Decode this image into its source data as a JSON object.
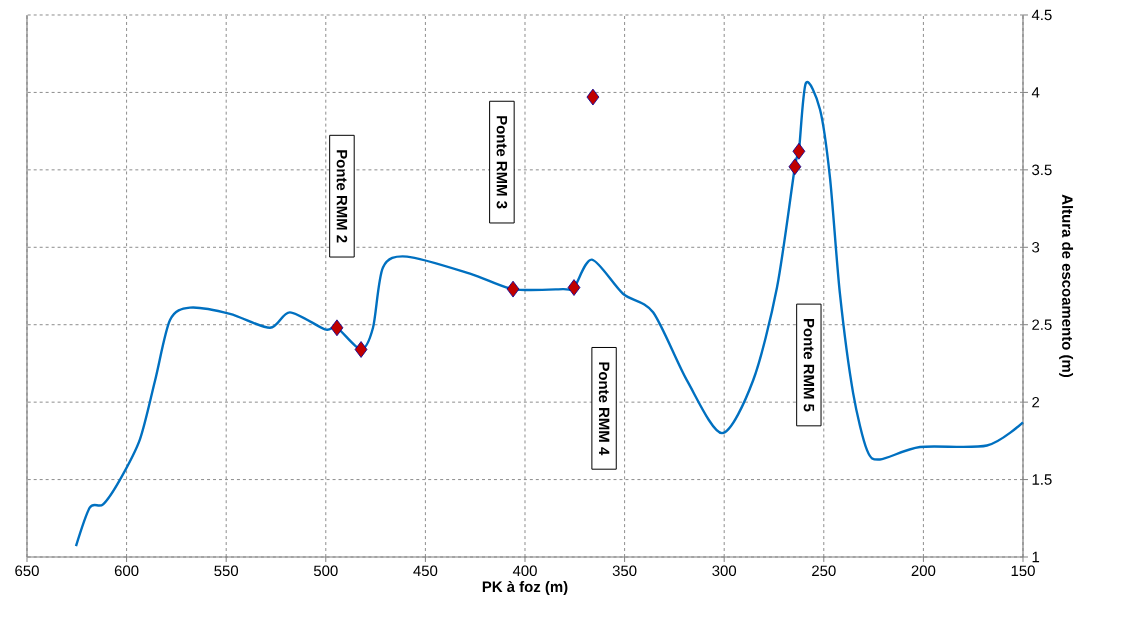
{
  "chart_data": {
    "type": "line",
    "xlabel": "PK à foz (m)",
    "ylabel": "Altura de escoamento (m)",
    "xlim": [
      650,
      150
    ],
    "xticks": [
      650,
      600,
      550,
      500,
      450,
      400,
      350,
      300,
      250,
      200,
      150
    ],
    "ylim": [
      1,
      4.5
    ],
    "yticks": [
      1,
      1.5,
      2,
      2.5,
      3,
      3.5,
      4,
      4.5
    ],
    "grid": true,
    "series": [
      {
        "color": "#0070c0",
        "x": [
          625.4,
          618.4,
          611.8,
          603.3,
          593.3,
          585.7,
          578.2,
          568.2,
          548.1,
          528.0,
          518.0,
          500.4,
          494.4,
          482.3,
          476.3,
          471.3,
          459.2,
          427.6,
          406.0,
          381.0,
          375.4,
          366.4,
          350.8,
          335.7,
          318.7,
          301.1,
          285.5,
          273.5,
          264.5,
          262.5,
          259.0,
          251.9,
          246.9,
          241.9,
          235.3,
          228.3,
          221.8,
          201.7,
          168.1,
          150.0
        ],
        "values": [
          1.07,
          1.32,
          1.34,
          1.5,
          1.76,
          2.14,
          2.53,
          2.61,
          2.57,
          2.48,
          2.58,
          2.47,
          2.48,
          2.34,
          2.48,
          2.87,
          2.94,
          2.83,
          2.73,
          2.73,
          2.74,
          2.92,
          2.7,
          2.58,
          2.14,
          1.8,
          2.14,
          2.74,
          3.52,
          3.62,
          4.06,
          3.89,
          3.45,
          2.7,
          2.06,
          1.69,
          1.63,
          1.71,
          1.72,
          1.87
        ]
      },
      {
        "type": "scatter",
        "color": "#c00000",
        "marker": "diamond",
        "x": [
          494.4,
          482.3,
          406.0,
          375.4,
          365.9,
          264.5,
          262.5
        ],
        "values": [
          2.48,
          2.34,
          2.73,
          2.74,
          3.97,
          3.52,
          3.62
        ]
      }
    ],
    "annotations": [
      "Ponte RMM 2",
      "Ponte RMM 3",
      "Ponte RMM 4",
      "Ponte RMM 5"
    ]
  }
}
